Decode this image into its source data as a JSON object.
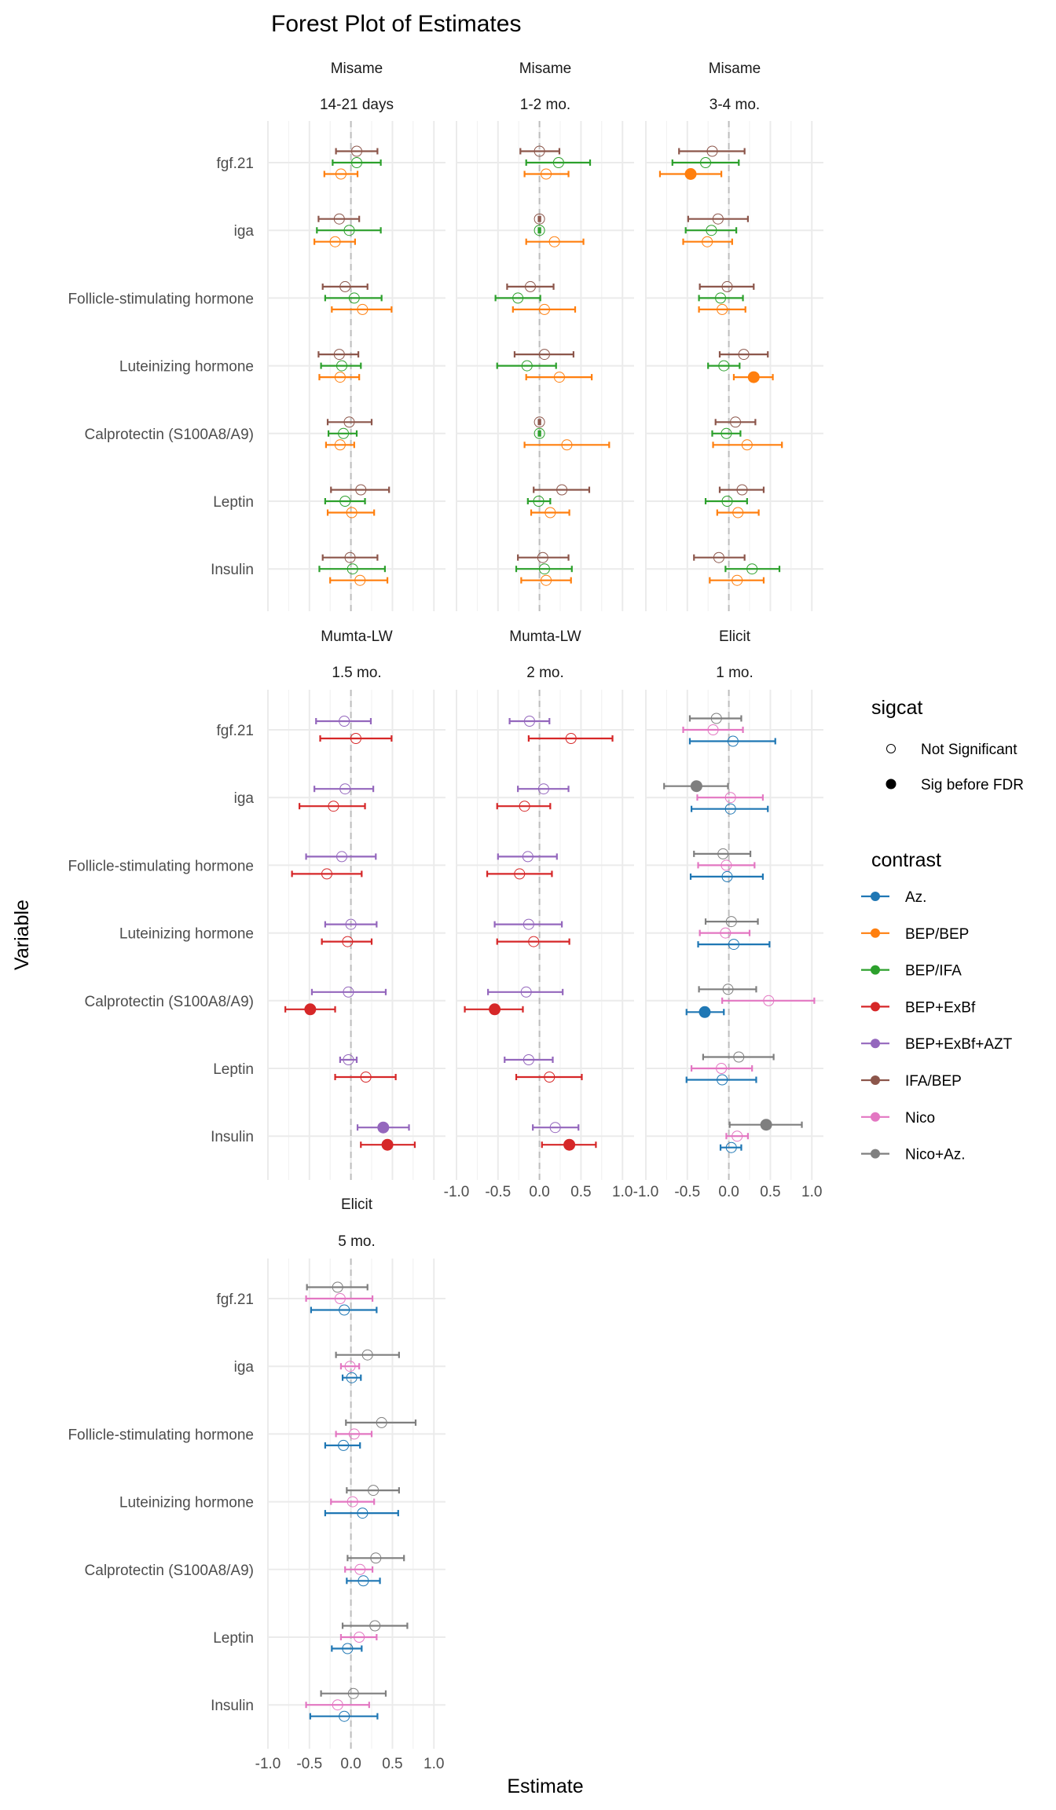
{
  "chart_data": {
    "type": "forest",
    "title": "Forest Plot of Estimates",
    "xlabel": "Estimate",
    "ylabel": "Variable",
    "xlim": [
      -1.0,
      1.14
    ],
    "xticks": [
      -1.0,
      -0.5,
      0.0,
      0.5,
      1.0
    ],
    "xtick_labels": [
      "-1.0",
      "-0.5",
      "0.0",
      "0.5",
      "1.0"
    ],
    "reference_line": 0,
    "grid": true,
    "variables": [
      "fgf.21",
      "iga",
      "Follicle-stimulating hormone",
      "Luteinizing hormone",
      "Calprotectin (S100A8/A9)",
      "Leptin",
      "Insulin"
    ],
    "legend": {
      "placement": "right",
      "sigcat": {
        "title": "sigcat",
        "items": [
          {
            "label": "Not Significant",
            "filled": false
          },
          {
            "label": "Sig before FDR",
            "filled": true
          }
        ]
      },
      "contrast": {
        "title": "contrast",
        "items": [
          {
            "label": "Az.",
            "color": "#1f77b4"
          },
          {
            "label": "BEP/BEP",
            "color": "#ff7f0e"
          },
          {
            "label": "BEP/IFA",
            "color": "#2ca02c"
          },
          {
            "label": "BEP+ExBf",
            "color": "#d62728"
          },
          {
            "label": "BEP+ExBf+AZT",
            "color": "#9467bd"
          },
          {
            "label": "IFA/BEP",
            "color": "#8c564b"
          },
          {
            "label": "Nico",
            "color": "#e377c2"
          },
          {
            "label": "Nico+Az.",
            "color": "#7f7f7f"
          }
        ]
      }
    },
    "panels": [
      {
        "study": "Misame",
        "timepoint": "14-21 days",
        "series_order": [
          "IFA/BEP",
          "BEP/IFA",
          "BEP/BEP"
        ],
        "points": {
          "fgf.21": [
            [
              0.07,
              -0.18,
              0.32,
              false
            ],
            [
              0.07,
              -0.22,
              0.36,
              false
            ],
            [
              -0.12,
              -0.32,
              0.08,
              false
            ]
          ],
          "iga": [
            [
              -0.14,
              -0.39,
              0.1,
              false
            ],
            [
              -0.02,
              -0.41,
              0.36,
              false
            ],
            [
              -0.19,
              -0.44,
              0.05,
              false
            ]
          ],
          "Follicle-stimulating hormone": [
            [
              -0.07,
              -0.34,
              0.2,
              false
            ],
            [
              0.04,
              -0.31,
              0.37,
              false
            ],
            [
              0.14,
              -0.23,
              0.49,
              false
            ]
          ],
          "Luteinizing hormone": [
            [
              -0.14,
              -0.39,
              0.09,
              false
            ],
            [
              -0.11,
              -0.36,
              0.12,
              false
            ],
            [
              -0.13,
              -0.38,
              0.1,
              false
            ]
          ],
          "Calprotectin (S100A8/A9)": [
            [
              -0.02,
              -0.28,
              0.25,
              false
            ],
            [
              -0.09,
              -0.27,
              0.07,
              false
            ],
            [
              -0.13,
              -0.3,
              0.04,
              false
            ]
          ],
          "Leptin": [
            [
              0.12,
              -0.24,
              0.46,
              false
            ],
            [
              -0.07,
              -0.31,
              0.17,
              false
            ],
            [
              0.01,
              -0.28,
              0.28,
              false
            ]
          ],
          "Insulin": [
            [
              -0.01,
              -0.34,
              0.32,
              false
            ],
            [
              0.02,
              -0.38,
              0.41,
              false
            ],
            [
              0.11,
              -0.25,
              0.44,
              false
            ]
          ]
        }
      },
      {
        "study": "Misame",
        "timepoint": "1-2 mo.",
        "series_order": [
          "IFA/BEP",
          "BEP/IFA",
          "BEP/BEP"
        ],
        "points": {
          "fgf.21": [
            [
              0.0,
              -0.23,
              0.24,
              false
            ],
            [
              0.23,
              -0.16,
              0.61,
              false
            ],
            [
              0.08,
              -0.18,
              0.35,
              false
            ]
          ],
          "iga": [
            [
              0.0,
              -0.01,
              0.01,
              false
            ],
            [
              0.0,
              -0.01,
              0.01,
              false
            ],
            [
              0.18,
              -0.16,
              0.53,
              false
            ]
          ],
          "Follicle-stimulating hormone": [
            [
              -0.11,
              -0.39,
              0.17,
              false
            ],
            [
              -0.26,
              -0.53,
              0.01,
              false
            ],
            [
              0.06,
              -0.32,
              0.43,
              false
            ]
          ],
          "Luteinizing hormone": [
            [
              0.06,
              -0.3,
              0.41,
              false
            ],
            [
              -0.15,
              -0.51,
              0.2,
              false
            ],
            [
              0.24,
              -0.16,
              0.63,
              false
            ]
          ],
          "Calprotectin (S100A8/A9)": [
            [
              0.0,
              -0.01,
              0.01,
              false
            ],
            [
              0.0,
              -0.01,
              0.01,
              false
            ],
            [
              0.33,
              -0.18,
              0.84,
              false
            ]
          ],
          "Leptin": [
            [
              0.27,
              -0.07,
              0.6,
              false
            ],
            [
              -0.01,
              -0.14,
              0.13,
              false
            ],
            [
              0.13,
              -0.1,
              0.36,
              false
            ]
          ],
          "Insulin": [
            [
              0.04,
              -0.26,
              0.35,
              false
            ],
            [
              0.06,
              -0.28,
              0.39,
              false
            ],
            [
              0.08,
              -0.22,
              0.38,
              false
            ]
          ]
        }
      },
      {
        "study": "Misame",
        "timepoint": "3-4 mo.",
        "series_order": [
          "IFA/BEP",
          "BEP/IFA",
          "BEP/BEP"
        ],
        "points": {
          "fgf.21": [
            [
              -0.2,
              -0.6,
              0.19,
              false
            ],
            [
              -0.28,
              -0.68,
              0.12,
              false
            ],
            [
              -0.46,
              -0.83,
              -0.09,
              true
            ]
          ],
          "iga": [
            [
              -0.13,
              -0.49,
              0.23,
              false
            ],
            [
              -0.21,
              -0.52,
              0.09,
              false
            ],
            [
              -0.26,
              -0.55,
              0.04,
              false
            ]
          ],
          "Follicle-stimulating hormone": [
            [
              -0.02,
              -0.35,
              0.3,
              false
            ],
            [
              -0.1,
              -0.36,
              0.17,
              false
            ],
            [
              -0.08,
              -0.36,
              0.2,
              false
            ]
          ],
          "Luteinizing hormone": [
            [
              0.18,
              -0.11,
              0.47,
              false
            ],
            [
              -0.06,
              -0.25,
              0.13,
              false
            ],
            [
              0.3,
              0.06,
              0.53,
              true
            ]
          ],
          "Calprotectin (S100A8/A9)": [
            [
              0.08,
              -0.16,
              0.32,
              false
            ],
            [
              -0.03,
              -0.2,
              0.14,
              false
            ],
            [
              0.22,
              -0.19,
              0.64,
              false
            ]
          ],
          "Leptin": [
            [
              0.16,
              -0.11,
              0.42,
              false
            ],
            [
              -0.02,
              -0.28,
              0.22,
              false
            ],
            [
              0.11,
              -0.14,
              0.36,
              false
            ]
          ],
          "Insulin": [
            [
              -0.12,
              -0.42,
              0.19,
              false
            ],
            [
              0.28,
              -0.04,
              0.61,
              false
            ],
            [
              0.1,
              -0.23,
              0.42,
              false
            ]
          ]
        }
      },
      {
        "study": "Mumta-LW",
        "timepoint": "1.5 mo.",
        "series_order": [
          "BEP+ExBf+AZT",
          "BEP+ExBf"
        ],
        "points": {
          "fgf.21": [
            [
              -0.08,
              -0.42,
              0.24,
              false
            ],
            [
              0.06,
              -0.37,
              0.49,
              false
            ]
          ],
          "iga": [
            [
              -0.07,
              -0.44,
              0.27,
              false
            ],
            [
              -0.21,
              -0.62,
              0.17,
              false
            ]
          ],
          "Follicle-stimulating hormone": [
            [
              -0.11,
              -0.54,
              0.3,
              false
            ],
            [
              -0.29,
              -0.71,
              0.13,
              false
            ]
          ],
          "Luteinizing hormone": [
            [
              0.0,
              -0.31,
              0.31,
              false
            ],
            [
              -0.04,
              -0.35,
              0.25,
              false
            ]
          ],
          "Calprotectin (S100A8/A9)": [
            [
              -0.03,
              -0.47,
              0.42,
              false
            ],
            [
              -0.49,
              -0.79,
              -0.19,
              true
            ]
          ],
          "Leptin": [
            [
              -0.03,
              -0.13,
              0.07,
              false
            ],
            [
              0.18,
              -0.19,
              0.54,
              false
            ]
          ],
          "Insulin": [
            [
              0.39,
              0.08,
              0.7,
              true
            ],
            [
              0.44,
              0.12,
              0.77,
              true
            ]
          ]
        }
      },
      {
        "study": "Mumta-LW",
        "timepoint": "2 mo.",
        "series_order": [
          "BEP+ExBf+AZT",
          "BEP+ExBf"
        ],
        "points": {
          "fgf.21": [
            [
              -0.12,
              -0.36,
              0.12,
              false
            ],
            [
              0.38,
              -0.13,
              0.88,
              false
            ]
          ],
          "iga": [
            [
              0.05,
              -0.26,
              0.35,
              false
            ],
            [
              -0.18,
              -0.51,
              0.13,
              false
            ]
          ],
          "Follicle-stimulating hormone": [
            [
              -0.14,
              -0.5,
              0.21,
              false
            ],
            [
              -0.24,
              -0.63,
              0.15,
              false
            ]
          ],
          "Luteinizing hormone": [
            [
              -0.13,
              -0.54,
              0.27,
              false
            ],
            [
              -0.07,
              -0.51,
              0.36,
              false
            ]
          ],
          "Calprotectin (S100A8/A9)": [
            [
              -0.16,
              -0.62,
              0.28,
              false
            ],
            [
              -0.54,
              -0.9,
              -0.2,
              true
            ]
          ],
          "Leptin": [
            [
              -0.13,
              -0.42,
              0.16,
              false
            ],
            [
              0.12,
              -0.28,
              0.51,
              false
            ]
          ],
          "Insulin": [
            [
              0.19,
              -0.08,
              0.47,
              false
            ],
            [
              0.36,
              0.03,
              0.68,
              true
            ]
          ]
        }
      },
      {
        "study": "Elicit",
        "timepoint": "1 mo.",
        "series_order": [
          "Nico+Az.",
          "Nico",
          "Az."
        ],
        "points": {
          "fgf.21": [
            [
              -0.15,
              -0.47,
              0.15,
              false
            ],
            [
              -0.19,
              -0.55,
              0.17,
              false
            ],
            [
              0.05,
              -0.47,
              0.56,
              false
            ]
          ],
          "iga": [
            [
              -0.39,
              -0.78,
              -0.01,
              true
            ],
            [
              0.02,
              -0.38,
              0.41,
              false
            ],
            [
              0.02,
              -0.45,
              0.47,
              false
            ]
          ],
          "Follicle-stimulating hormone": [
            [
              -0.07,
              -0.42,
              0.26,
              false
            ],
            [
              -0.03,
              -0.37,
              0.31,
              false
            ],
            [
              -0.02,
              -0.46,
              0.41,
              false
            ]
          ],
          "Luteinizing hormone": [
            [
              0.03,
              -0.28,
              0.35,
              false
            ],
            [
              -0.04,
              -0.35,
              0.25,
              false
            ],
            [
              0.06,
              -0.37,
              0.49,
              false
            ]
          ],
          "Calprotectin (S100A8/A9)": [
            [
              -0.01,
              -0.36,
              0.33,
              false
            ],
            [
              0.48,
              -0.08,
              1.03,
              false
            ],
            [
              -0.29,
              -0.51,
              -0.06,
              true
            ]
          ],
          "Leptin": [
            [
              0.12,
              -0.31,
              0.54,
              false
            ],
            [
              -0.09,
              -0.45,
              0.28,
              false
            ],
            [
              -0.08,
              -0.51,
              0.33,
              false
            ]
          ],
          "Insulin": [
            [
              0.45,
              0.01,
              0.88,
              true
            ],
            [
              0.1,
              -0.03,
              0.23,
              false
            ],
            [
              0.03,
              -0.1,
              0.15,
              false
            ]
          ]
        }
      },
      {
        "study": "Elicit",
        "timepoint": "5 mo.",
        "series_order": [
          "Nico+Az.",
          "Nico",
          "Az."
        ],
        "points": {
          "fgf.21": [
            [
              -0.16,
              -0.53,
              0.2,
              false
            ],
            [
              -0.13,
              -0.54,
              0.26,
              false
            ],
            [
              -0.08,
              -0.48,
              0.31,
              false
            ]
          ],
          "iga": [
            [
              0.2,
              -0.18,
              0.58,
              false
            ],
            [
              -0.01,
              -0.12,
              0.1,
              false
            ],
            [
              0.01,
              -0.1,
              0.12,
              false
            ]
          ],
          "Follicle-stimulating hormone": [
            [
              0.37,
              -0.06,
              0.78,
              false
            ],
            [
              0.04,
              -0.18,
              0.25,
              false
            ],
            [
              -0.09,
              -0.31,
              0.11,
              false
            ]
          ],
          "Luteinizing hormone": [
            [
              0.27,
              -0.05,
              0.58,
              false
            ],
            [
              0.02,
              -0.24,
              0.28,
              false
            ],
            [
              0.14,
              -0.31,
              0.57,
              false
            ]
          ],
          "Calprotectin (S100A8/A9)": [
            [
              0.3,
              -0.04,
              0.64,
              false
            ],
            [
              0.11,
              -0.07,
              0.26,
              false
            ],
            [
              0.15,
              -0.05,
              0.35,
              false
            ]
          ],
          "Leptin": [
            [
              0.29,
              -0.1,
              0.68,
              false
            ],
            [
              0.1,
              -0.12,
              0.31,
              false
            ],
            [
              -0.04,
              -0.23,
              0.13,
              false
            ]
          ],
          "Insulin": [
            [
              0.03,
              -0.36,
              0.42,
              false
            ],
            [
              -0.16,
              -0.54,
              0.22,
              false
            ],
            [
              -0.08,
              -0.49,
              0.32,
              false
            ]
          ]
        }
      }
    ]
  }
}
